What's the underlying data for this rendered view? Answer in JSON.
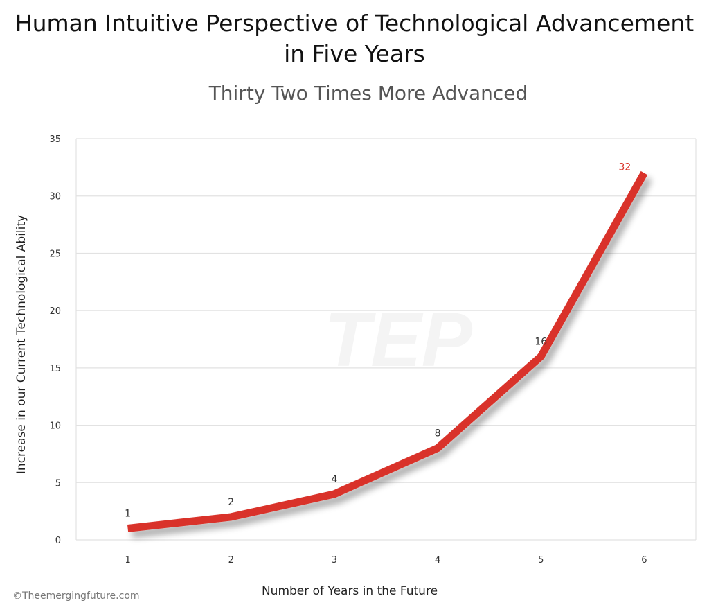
{
  "chart_data": {
    "type": "line",
    "title": "Human Intuitive Perspective of Technological Advancement in Five Years",
    "title_lines": [
      "Human Intuitive Perspective of Technological Advancement",
      "in Five Years"
    ],
    "subtitle": "Thirty Two Times More Advanced",
    "xlabel": "Number of Years in the Future",
    "ylabel": "Increase in our Current Technological Ability",
    "x": [
      1,
      2,
      3,
      4,
      5,
      6
    ],
    "values": [
      1,
      2,
      4,
      8,
      16,
      32
    ],
    "data_labels": [
      "1",
      "2",
      "4",
      "8",
      "16",
      "32"
    ],
    "x_ticks": [
      "1",
      "2",
      "3",
      "4",
      "5",
      "6"
    ],
    "y_ticks": [
      "0",
      "5",
      "10",
      "15",
      "20",
      "25",
      "30",
      "35"
    ],
    "xlim": [
      0.5,
      6.5
    ],
    "ylim": [
      0,
      35
    ],
    "grid": "horizontal",
    "line_color": "#d93329",
    "highlight_label_color": "#d93329",
    "watermark": "TEP"
  },
  "credit": "©Theemergingfuture.com"
}
